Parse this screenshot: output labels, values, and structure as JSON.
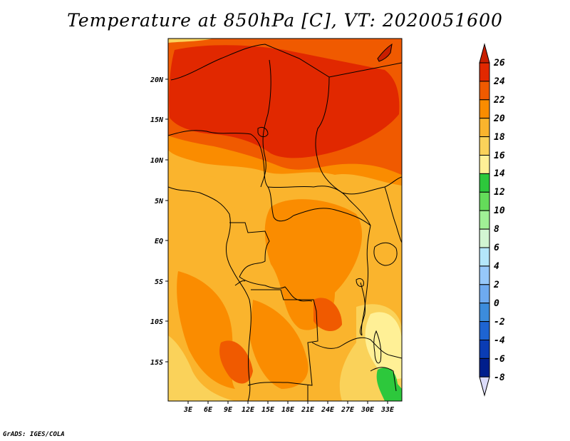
{
  "title": "Temperature at 850hPa [C], VT: 2020051600",
  "credit": "GrADS: IGES/COLA",
  "map": {
    "lat_labels": [
      "20N",
      "15N",
      "10N",
      "5N",
      "EQ",
      "5S",
      "10S",
      "15S"
    ],
    "lon_labels": [
      "3E",
      "6E",
      "9E",
      "12E",
      "15E",
      "18E",
      "21E",
      "24E",
      "27E",
      "30E",
      "33E"
    ]
  },
  "colorbar": {
    "labels": [
      "26",
      "24",
      "22",
      "20",
      "18",
      "16",
      "14",
      "12",
      "10",
      "8",
      "6",
      "4",
      "2",
      "0",
      "-2",
      "-4",
      "-6",
      "-8"
    ],
    "colors": {
      "gt26": "#c81e00",
      "24_26": "#e12800",
      "22_24": "#f05a00",
      "20_22": "#fa8c00",
      "18_20": "#fab42d",
      "16_18": "#fad25a",
      "14_16": "#fff096",
      "12_14": "#2dc83c",
      "10_12": "#64dc5a",
      "8_10": "#a0f096",
      "6_8": "#d2f5d2",
      "4_6": "#b4e6fa",
      "2_4": "#96c8fa",
      "0_2": "#6eaaf0",
      "m2_0": "#3c8cdc",
      "m4_m2": "#1e64d2",
      "m6_m4": "#0a3cb4",
      "m8_m6": "#001e8c",
      "lt_m8": "#dcdcfa"
    }
  }
}
